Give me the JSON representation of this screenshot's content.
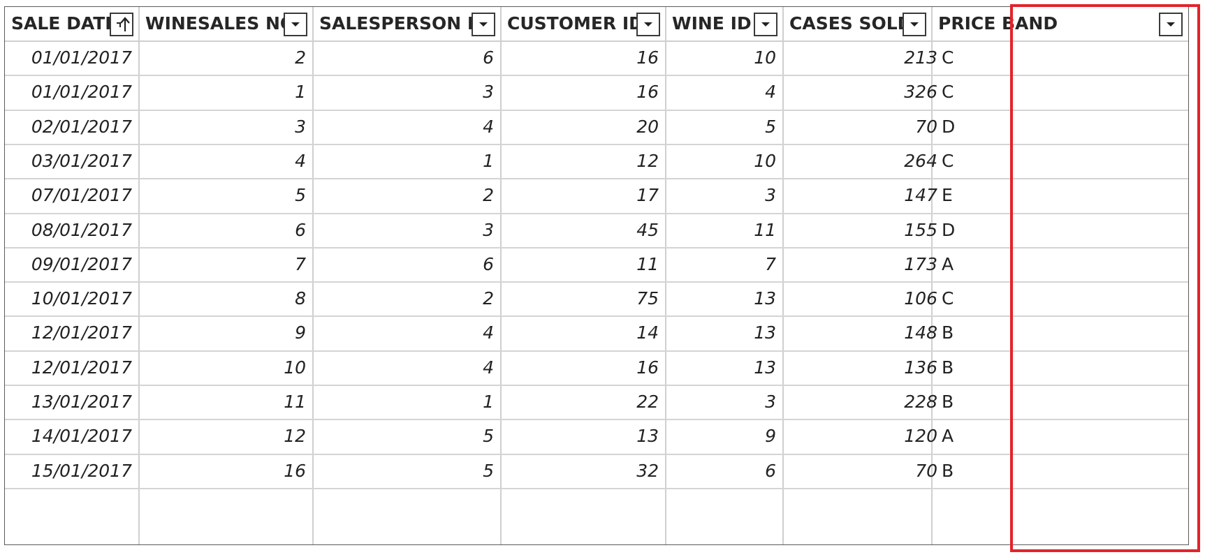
{
  "columns": [
    {
      "label": "SALE DATE",
      "control": "sort-ascending-icon"
    },
    {
      "label": "WINESALES NO",
      "control": "chevron-down-icon"
    },
    {
      "label": "SALESPERSON ID",
      "control": "chevron-down-icon"
    },
    {
      "label": "CUSTOMER ID",
      "control": "chevron-down-icon"
    },
    {
      "label": "WINE ID",
      "control": "chevron-down-icon"
    },
    {
      "label": "CASES SOLD",
      "control": "chevron-down-icon"
    },
    {
      "label": "PRICE BAND",
      "control": "chevron-down-icon"
    }
  ],
  "rows": [
    [
      "01/01/2017",
      "2",
      "6",
      "16",
      "10",
      "213",
      "C"
    ],
    [
      "01/01/2017",
      "1",
      "3",
      "16",
      "4",
      "326",
      "C"
    ],
    [
      "02/01/2017",
      "3",
      "4",
      "20",
      "5",
      "70",
      "D"
    ],
    [
      "03/01/2017",
      "4",
      "1",
      "12",
      "10",
      "264",
      "C"
    ],
    [
      "07/01/2017",
      "5",
      "2",
      "17",
      "3",
      "147",
      "E"
    ],
    [
      "08/01/2017",
      "6",
      "3",
      "45",
      "11",
      "155",
      "D"
    ],
    [
      "09/01/2017",
      "7",
      "6",
      "11",
      "7",
      "173",
      "A"
    ],
    [
      "10/01/2017",
      "8",
      "2",
      "75",
      "13",
      "106",
      "C"
    ],
    [
      "12/01/2017",
      "9",
      "4",
      "14",
      "13",
      "148",
      "B"
    ],
    [
      "12/01/2017",
      "10",
      "4",
      "16",
      "13",
      "136",
      "B"
    ],
    [
      "13/01/2017",
      "11",
      "1",
      "22",
      "3",
      "228",
      "B"
    ],
    [
      "14/01/2017",
      "12",
      "5",
      "13",
      "9",
      "120",
      "A"
    ],
    [
      "15/01/2017",
      "16",
      "5",
      "32",
      "6",
      "70",
      "B"
    ]
  ],
  "highlight": {
    "column": "PRICE BAND",
    "color": "#e3232a"
  }
}
